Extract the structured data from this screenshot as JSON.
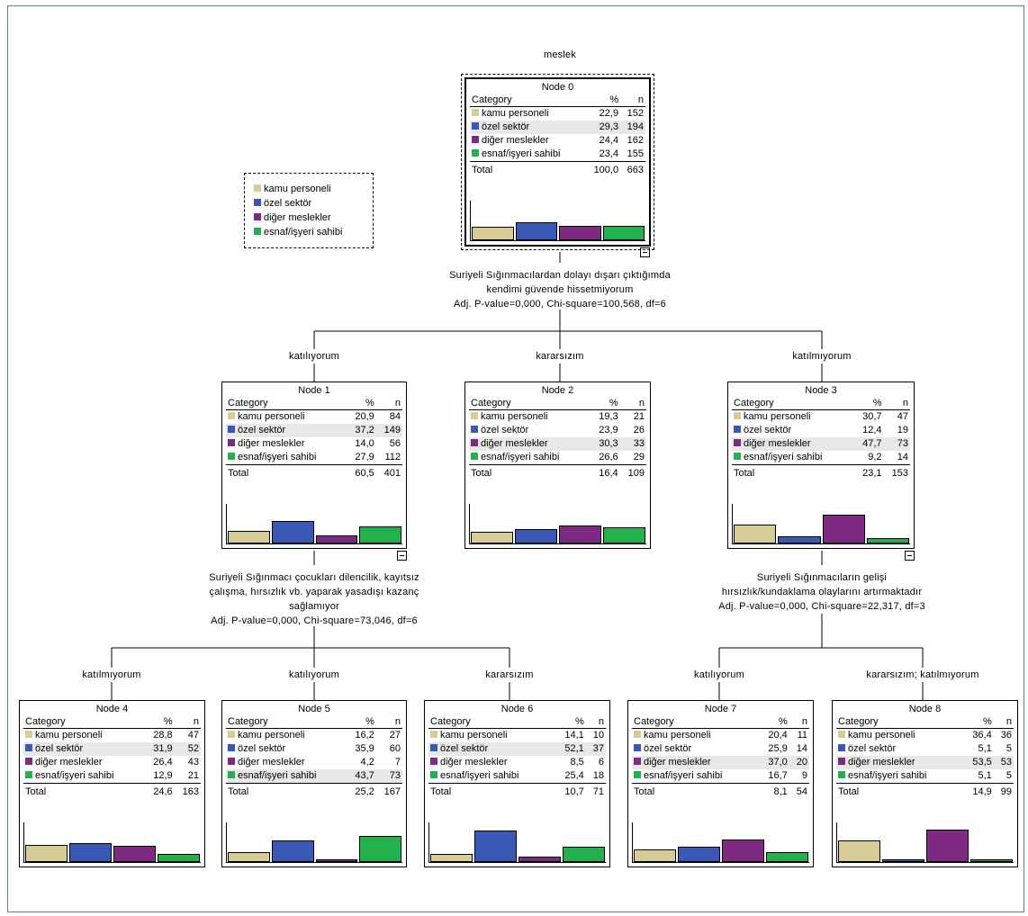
{
  "target": "meslek",
  "colors": {
    "kamu": "#d7cc96",
    "ozel": "#3a58b6",
    "diger": "#7e2a82",
    "esnaf": "#22b14c"
  },
  "legend": [
    "kamu personeli",
    "özel sektör",
    "diğer meslekler",
    "esnaf/işyeri sahibi"
  ],
  "headers": {
    "category": "Category",
    "pct": "%",
    "n": "n",
    "total": "Total"
  },
  "splits": {
    "s0": [
      "Suriyeli Sığınmacılardan dolayı dışarı çıktığımda",
      "kendimi güvende hissetmiyorum",
      "Adj. P-value=0,000, Chi-square=100,568, df=6"
    ],
    "s1": [
      "Suriyeli Sığınmacı çocukları dilencilik, kayıtsız",
      "çalışma, hırsızlık vb. yaparak yasadışı kazanç",
      "sağlamıyor",
      "Adj. P-value=0,000, Chi-square=73,046, df=6"
    ],
    "s3": [
      "Suriyeli Sığınmacıların gelişi",
      "hırsızlık/kundaklama olaylarını artırmaktadır",
      "Adj. P-value=0,000, Chi-square=22,317, df=3"
    ]
  },
  "branch_labels": {
    "n1": "katılıyorum",
    "n2": "kararsızım",
    "n3": "katılmıyorum",
    "n4": "katılmıyorum",
    "n5": "katılıyorum",
    "n6": "kararsızım",
    "n7": "katılıyorum",
    "n8": "kararsızım; katılmıyorum"
  },
  "nodes": {
    "n0": {
      "title": "Node 0",
      "rows": [
        [
          "kamu personeli",
          "22,9",
          "152"
        ],
        [
          "özel sektör",
          "29,3",
          "194"
        ],
        [
          "diğer meslekler",
          "24,4",
          "162"
        ],
        [
          "esnaf/işyeri sahibi",
          "23,4",
          "155"
        ]
      ],
      "total": [
        "100,0",
        "663"
      ],
      "hl": 1,
      "bars": [
        22.9,
        29.3,
        24.4,
        23.4
      ]
    },
    "n1": {
      "title": "Node 1",
      "rows": [
        [
          "kamu personeli",
          "20,9",
          "84"
        ],
        [
          "özel sektör",
          "37,2",
          "149"
        ],
        [
          "diğer meslekler",
          "14,0",
          "56"
        ],
        [
          "esnaf/işyeri sahibi",
          "27,9",
          "112"
        ]
      ],
      "total": [
        "60,5",
        "401"
      ],
      "hl": 1,
      "bars": [
        20.9,
        37.2,
        14.0,
        27.9
      ]
    },
    "n2": {
      "title": "Node 2",
      "rows": [
        [
          "kamu personeli",
          "19,3",
          "21"
        ],
        [
          "özel sektör",
          "23,9",
          "26"
        ],
        [
          "diğer meslekler",
          "30,3",
          "33"
        ],
        [
          "esnaf/işyeri sahibi",
          "26,6",
          "29"
        ]
      ],
      "total": [
        "16,4",
        "109"
      ],
      "hl": 2,
      "bars": [
        19.3,
        23.9,
        30.3,
        26.6
      ]
    },
    "n3": {
      "title": "Node 3",
      "rows": [
        [
          "kamu personeli",
          "30,7",
          "47"
        ],
        [
          "özel sektör",
          "12,4",
          "19"
        ],
        [
          "diğer meslekler",
          "47,7",
          "73"
        ],
        [
          "esnaf/işyeri sahibi",
          "9,2",
          "14"
        ]
      ],
      "total": [
        "23,1",
        "153"
      ],
      "hl": 2,
      "bars": [
        30.7,
        12.4,
        47.7,
        9.2
      ]
    },
    "n4": {
      "title": "Node 4",
      "rows": [
        [
          "kamu personeli",
          "28,8",
          "47"
        ],
        [
          "özel sektör",
          "31,9",
          "52"
        ],
        [
          "diğer meslekler",
          "26,4",
          "43"
        ],
        [
          "esnaf/işyeri sahibi",
          "12,9",
          "21"
        ]
      ],
      "total": [
        "24,6",
        "163"
      ],
      "hl": 1,
      "bars": [
        28.8,
        31.9,
        26.4,
        12.9
      ]
    },
    "n5": {
      "title": "Node 5",
      "rows": [
        [
          "kamu personeli",
          "16,2",
          "27"
        ],
        [
          "özel sektör",
          "35,9",
          "60"
        ],
        [
          "diğer meslekler",
          "4,2",
          "7"
        ],
        [
          "esnaf/işyeri sahibi",
          "43,7",
          "73"
        ]
      ],
      "total": [
        "25,2",
        "167"
      ],
      "hl": 3,
      "bars": [
        16.2,
        35.9,
        4.2,
        43.7
      ]
    },
    "n6": {
      "title": "Node 6",
      "rows": [
        [
          "kamu personeli",
          "14,1",
          "10"
        ],
        [
          "özel sektör",
          "52,1",
          "37"
        ],
        [
          "diğer meslekler",
          "8,5",
          "6"
        ],
        [
          "esnaf/işyeri sahibi",
          "25,4",
          "18"
        ]
      ],
      "total": [
        "10,7",
        "71"
      ],
      "hl": 1,
      "bars": [
        14.1,
        52.1,
        8.5,
        25.4
      ]
    },
    "n7": {
      "title": "Node 7",
      "rows": [
        [
          "kamu personeli",
          "20,4",
          "11"
        ],
        [
          "özel sektör",
          "25,9",
          "14"
        ],
        [
          "diğer meslekler",
          "37,0",
          "20"
        ],
        [
          "esnaf/işyeri sahibi",
          "16,7",
          "9"
        ]
      ],
      "total": [
        "8,1",
        "54"
      ],
      "hl": 2,
      "bars": [
        20.4,
        25.9,
        37.0,
        16.7
      ]
    },
    "n8": {
      "title": "Node 8",
      "rows": [
        [
          "kamu personeli",
          "36,4",
          "36"
        ],
        [
          "özel sektör",
          "5,1",
          "5"
        ],
        [
          "diğer meslekler",
          "53,5",
          "53"
        ],
        [
          "esnaf/işyeri sahibi",
          "5,1",
          "5"
        ]
      ],
      "total": [
        "14,9",
        "99"
      ],
      "hl": 2,
      "bars": [
        36.4,
        5.1,
        53.5,
        5.1
      ]
    }
  }
}
